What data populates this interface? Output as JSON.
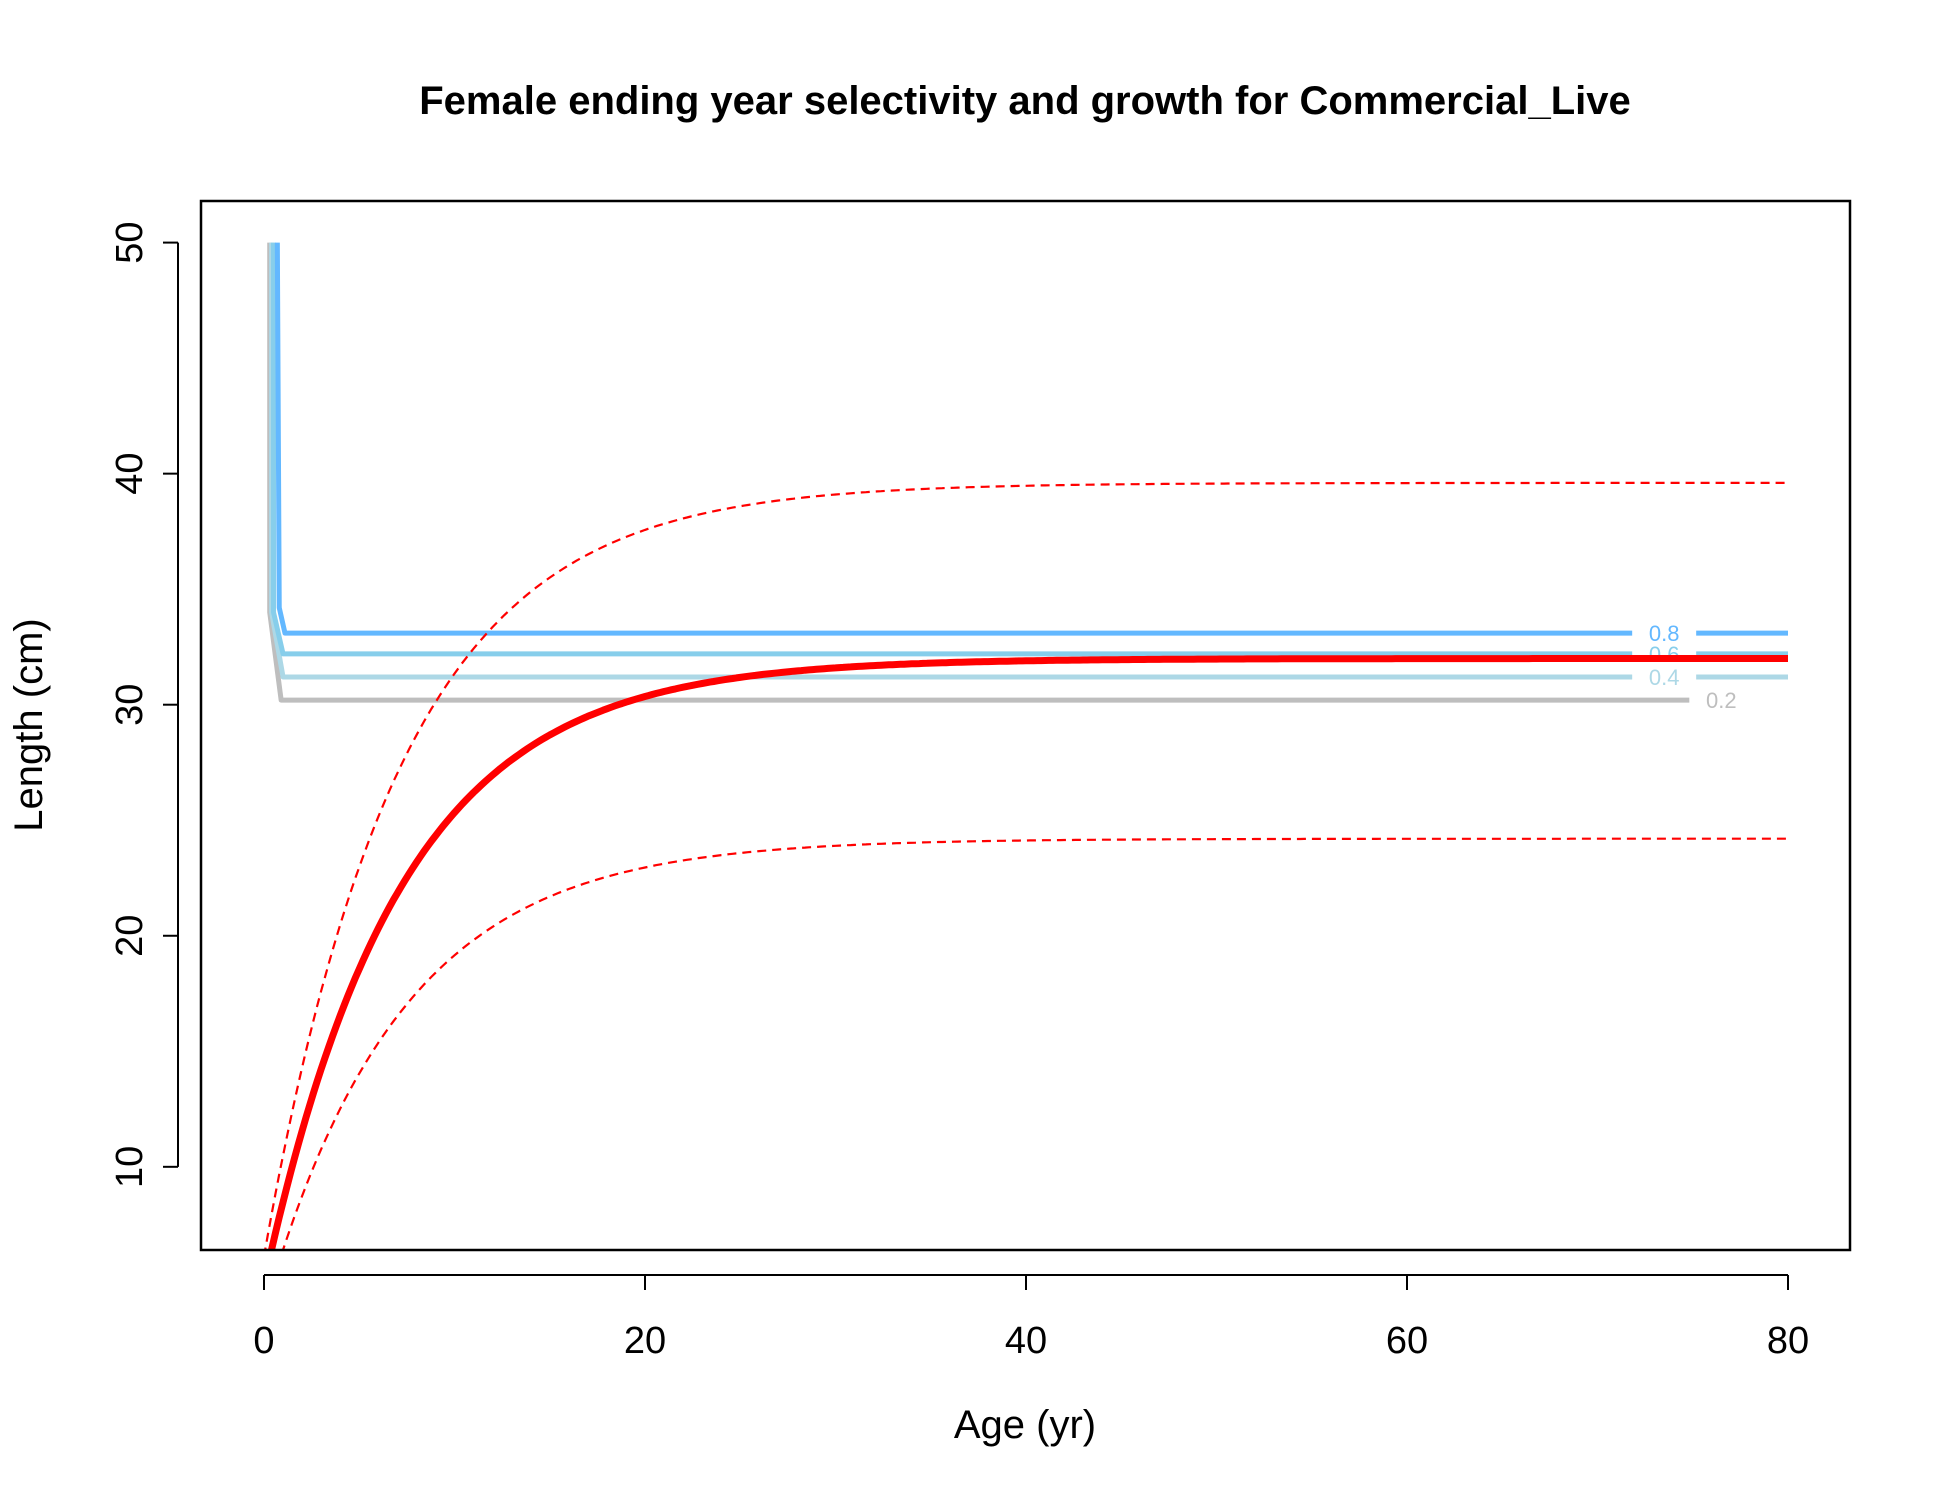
{
  "chart_data": {
    "type": "line",
    "title": "Female ending year selectivity and growth for Commercial_Live",
    "xlabel": "Age (yr)",
    "ylabel": "Length (cm)",
    "xlim": [
      0,
      80
    ],
    "ylim": [
      6.4,
      51.8
    ],
    "x_ticks": [
      "0",
      "20",
      "40",
      "60",
      "80"
    ],
    "y_ticks": [
      "10",
      "20",
      "30",
      "40",
      "50"
    ],
    "grid": false,
    "colors": {
      "growth": "#ff0000",
      "contour_0.8": "#63b8ff",
      "contour_0.6": "#87ceeb",
      "contour_0.4": "#add8e6",
      "contour_0.2": "#bebebe"
    },
    "contours": [
      {
        "label": "0.2",
        "points": [
          [
            0.3,
            50
          ],
          [
            0.3,
            34
          ],
          [
            0.9,
            30.2
          ],
          [
            80,
            30.2
          ]
        ]
      },
      {
        "label": "0.4",
        "points": [
          [
            0.4,
            50
          ],
          [
            0.4,
            34
          ],
          [
            1.0,
            31.2
          ],
          [
            80,
            31.2
          ]
        ]
      },
      {
        "label": "0.6",
        "points": [
          [
            0.5,
            50
          ],
          [
            0.5,
            34
          ],
          [
            1.0,
            32.2
          ],
          [
            80,
            32.2
          ]
        ]
      },
      {
        "label": "0.8",
        "points": [
          [
            0.7,
            50
          ],
          [
            0.8,
            34.2
          ],
          [
            1.1,
            33.1
          ],
          [
            80,
            33.1
          ]
        ]
      }
    ],
    "growth": {
      "linf": 32,
      "k": 0.14,
      "t0": -1.2,
      "lower_linf": 24.2,
      "upper_linf": 39.6,
      "x_max": 80
    }
  }
}
